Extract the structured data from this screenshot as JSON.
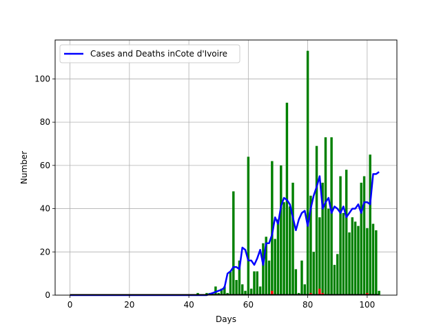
{
  "chart_data": {
    "type": "bar",
    "title": "",
    "xlabel": "Days",
    "ylabel": "Number",
    "xlim": [
      -5,
      110
    ],
    "ylim": [
      0,
      118
    ],
    "xticks": [
      0,
      20,
      40,
      60,
      80,
      100
    ],
    "yticks": [
      0,
      20,
      40,
      60,
      80,
      100
    ],
    "grid": true,
    "legend": {
      "placement": "top-left",
      "entries": [
        "Cases and Deaths inCote d'Ivoire"
      ]
    },
    "series": [
      {
        "kind": "bar",
        "color": "#008000",
        "x": [
          43,
          44,
          45,
          46,
          47,
          48,
          49,
          50,
          51,
          52,
          53,
          54,
          55,
          56,
          57,
          58,
          59,
          60,
          61,
          62,
          63,
          64,
          65,
          66,
          67,
          68,
          69,
          70,
          71,
          72,
          73,
          74,
          75,
          76,
          77,
          78,
          79,
          80,
          81,
          82,
          83,
          84,
          85,
          86,
          87,
          88,
          89,
          90,
          91,
          92,
          93,
          94,
          95,
          96,
          97,
          98,
          99,
          100,
          101,
          102,
          103,
          104
        ],
        "values": [
          1,
          0,
          0,
          1,
          1,
          1,
          4,
          1,
          3,
          4,
          1,
          11,
          48,
          7,
          16,
          5,
          2,
          64,
          3,
          11,
          11,
          4,
          24,
          27,
          16,
          62,
          26,
          35,
          60,
          43,
          89,
          41,
          52,
          12,
          1,
          16,
          5,
          113,
          46,
          20,
          69,
          36,
          52,
          73,
          40,
          73,
          14,
          19,
          55,
          38,
          58,
          29,
          36,
          34,
          32,
          52,
          55,
          31,
          65,
          33,
          30,
          2
        ]
      },
      {
        "kind": "bar",
        "color": "#ff0000",
        "x": [
          68,
          81,
          84,
          85,
          100
        ],
        "values": [
          2,
          1,
          3,
          1,
          1
        ]
      },
      {
        "kind": "line",
        "name": "Cases and Deaths inCote d'Ivoire",
        "color": "#0000ff",
        "x": [
          0,
          10,
          20,
          30,
          40,
          44,
          46,
          47,
          48,
          49,
          50,
          51,
          52,
          53,
          54,
          55,
          56,
          57,
          58,
          59,
          60,
          61,
          62,
          63,
          64,
          65,
          66,
          67,
          68,
          69,
          70,
          71,
          72,
          73,
          74,
          75,
          76,
          77,
          78,
          79,
          80,
          81,
          82,
          83,
          84,
          85,
          86,
          87,
          88,
          89,
          90,
          91,
          92,
          93,
          94,
          95,
          96,
          97,
          98,
          99,
          100,
          101,
          102,
          103,
          104
        ],
        "values": [
          0,
          0,
          0,
          0,
          0,
          0,
          0,
          0.5,
          1,
          1.5,
          2,
          2.5,
          3.5,
          10,
          11,
          13,
          13,
          12,
          22,
          21,
          16,
          16,
          14,
          17,
          21,
          14,
          24,
          24,
          28,
          36,
          33,
          41,
          45,
          44,
          42,
          36,
          30,
          35,
          38,
          39,
          32,
          40,
          46,
          50,
          55,
          40,
          43,
          45,
          38,
          41,
          40,
          38,
          41,
          36,
          38,
          40,
          40,
          42,
          38,
          43,
          43,
          42,
          56,
          56,
          57
        ]
      }
    ]
  }
}
